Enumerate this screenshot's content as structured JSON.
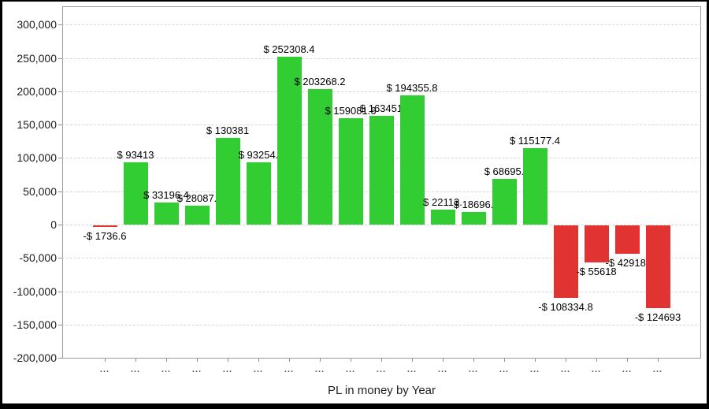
{
  "window": {
    "background": "#ffffff",
    "frame_color": "#000000"
  },
  "chart_data": {
    "type": "bar",
    "title": "",
    "xlabel": "PL in money by Year",
    "ylabel": "",
    "ylim": [
      -200000,
      300000
    ],
    "ytick_step": 50000,
    "ytick_labels": [
      "300,000",
      "250,000",
      "200,000",
      "150,000",
      "100,000",
      "50,000",
      "0",
      "-50,000",
      "-100,000",
      "-150,000",
      "-200,000"
    ],
    "xtick_label": "...",
    "grid": "horizontal-dashed",
    "legend": "none",
    "colors": {
      "positive": "#32cd32",
      "negative": "#e23333",
      "grid": "#d6d6d6",
      "axis": "#9b9b9b",
      "text": "#000000"
    },
    "bars": [
      {
        "label": "-$ 1736.6",
        "value": -1736.6
      },
      {
        "label": "$ 93413",
        "value": 93413
      },
      {
        "label": "$ 33196.4",
        "value": 33196.4
      },
      {
        "label": "$ 28087.",
        "value": 28087
      },
      {
        "label": "$ 130381",
        "value": 130381
      },
      {
        "label": "$ 93254.",
        "value": 93254
      },
      {
        "label": "$ 252308.4",
        "value": 252308.4
      },
      {
        "label": "$ 203268.2",
        "value": 203268.2
      },
      {
        "label": "$ 159081.6",
        "value": 159081.6
      },
      {
        "label": "$ 163451",
        "value": 163451
      },
      {
        "label": "$ 194355.8",
        "value": 194355.8
      },
      {
        "label": "$ 22113.",
        "value": 22113
      },
      {
        "label": "$ 18696.",
        "value": 18696
      },
      {
        "label": "$ 68695.",
        "value": 68695
      },
      {
        "label": "$ 115177.4",
        "value": 115177.4
      },
      {
        "label": "-$ 108334.8",
        "value": -108334.8
      },
      {
        "label": "-$ 55618",
        "value": -55618
      },
      {
        "label": "-$ 42918.",
        "value": -42918
      },
      {
        "label": "-$ 124693",
        "value": -124693
      }
    ]
  }
}
